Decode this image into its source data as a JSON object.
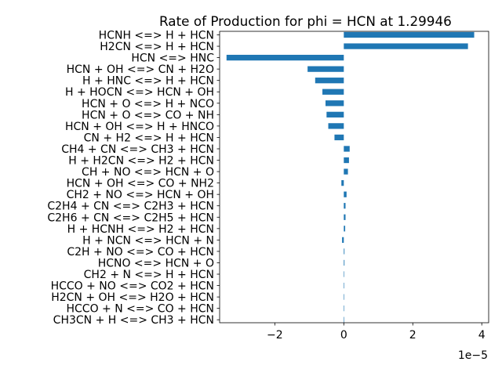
{
  "chart_data": {
    "type": "bar",
    "orientation": "horizontal",
    "title": "Rate of Production for phi = HCN at 1.29946",
    "xlabel": "",
    "ylabel": "",
    "x_offset_label": "1e−5",
    "x_scale": 1e-05,
    "xlim": [
      -3.6,
      4.2
    ],
    "x_ticks": [
      -2,
      0,
      2,
      4
    ],
    "x_tick_labels": [
      "−2",
      "0",
      "2",
      "4"
    ],
    "grid": false,
    "bar_color": "#1f77b4",
    "categories": [
      "HCNH <=> H + HCN",
      "H2CN <=> H + HCN",
      "HCN <=> HNC",
      "HCN + OH <=> CN + H2O",
      "H + HNC <=> H + HCN",
      "H + HOCN <=> HCN + OH",
      "HCN + O <=> H + NCO",
      "HCN + O <=> CO + NH",
      "HCN + OH <=> H + HNCO",
      "CN + H2 <=> H + HCN",
      "CH4 + CN <=> CH3 + HCN",
      "H + H2CN <=> H2 + HCN",
      "CH + NO <=> HCN + O",
      "HCN + OH <=> CO + NH2",
      "CH2 + NO <=> HCN + OH",
      "C2H4 + CN <=> C2H3 + HCN",
      "C2H6 + CN <=> C2H5 + HCN",
      "H + HCNH <=> H2 + HCN",
      "H + NCN <=> HCN + N",
      "C2H + NO <=> CO + HCN",
      "HCNO <=> HCN + O",
      "CH2 + N <=> H + HCN",
      "HCCO + NO <=> CO2 + HCN",
      "H2CN + OH <=> H2O + HCN",
      "HCCO + N <=> CO + HCN",
      "CH3CN + H <=> CH3 + HCN"
    ],
    "values": [
      3.78,
      3.6,
      -3.4,
      -1.05,
      -0.83,
      -0.62,
      -0.53,
      -0.5,
      -0.45,
      -0.27,
      0.17,
      0.15,
      0.12,
      -0.07,
      0.08,
      0.05,
      0.05,
      0.04,
      -0.05,
      0.02,
      0.02,
      0.01,
      0.01,
      0.01,
      0.0,
      0.004
    ]
  }
}
